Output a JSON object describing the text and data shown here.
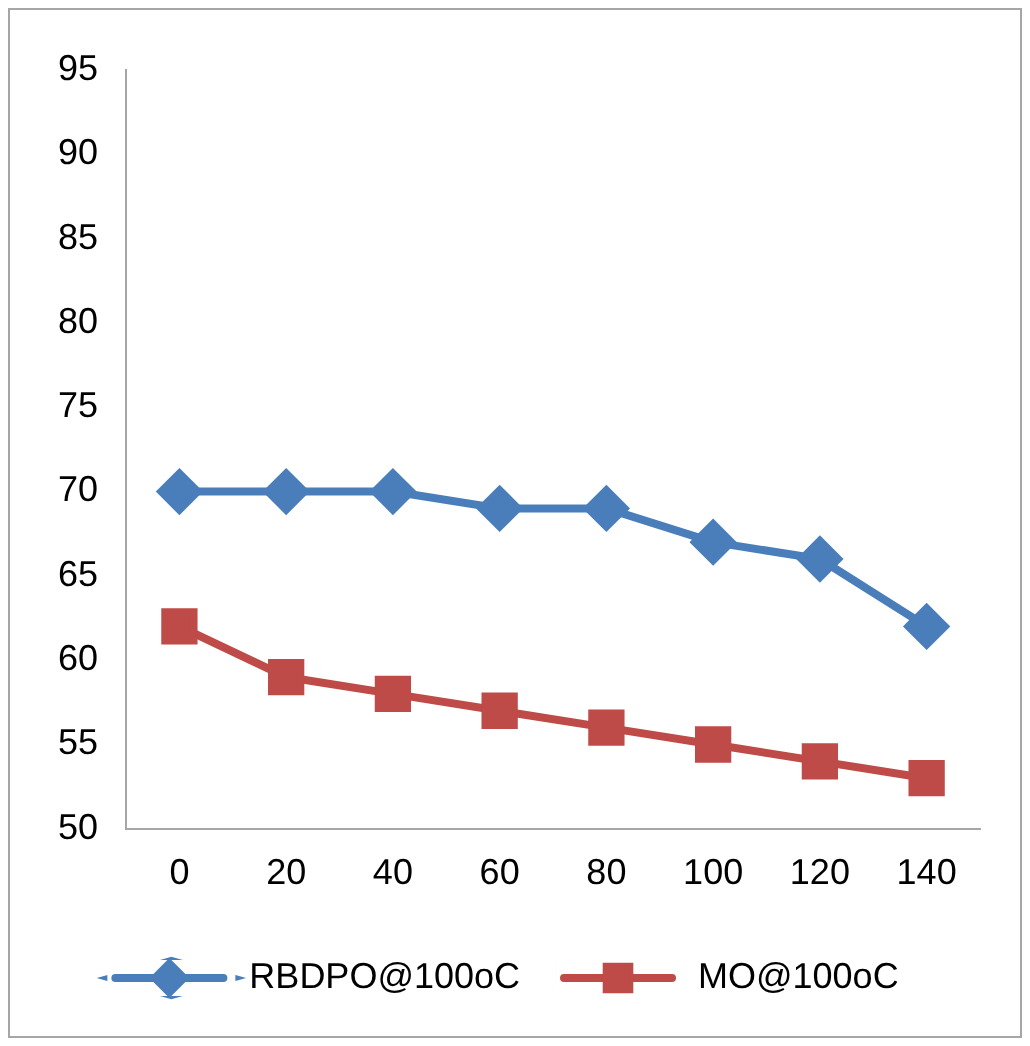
{
  "chart_data": {
    "type": "line",
    "categories": [
      "0",
      "20",
      "40",
      "60",
      "80",
      "100",
      "120",
      "140"
    ],
    "ylim": [
      50,
      95
    ],
    "yticks": [
      50,
      55,
      60,
      65,
      70,
      75,
      80,
      85,
      90,
      95
    ],
    "grid": false,
    "legend": "bottom",
    "series": [
      {
        "name": "RBDPO@100oC",
        "color": "#4a7ebb",
        "marker": "diamond",
        "values": [
          70,
          70,
          70,
          69,
          69,
          67,
          66,
          62
        ]
      },
      {
        "name": "MO@100oC",
        "color": "#be4b48",
        "marker": "square",
        "values": [
          62,
          59,
          58,
          57,
          56,
          55,
          54,
          53
        ]
      }
    ]
  }
}
